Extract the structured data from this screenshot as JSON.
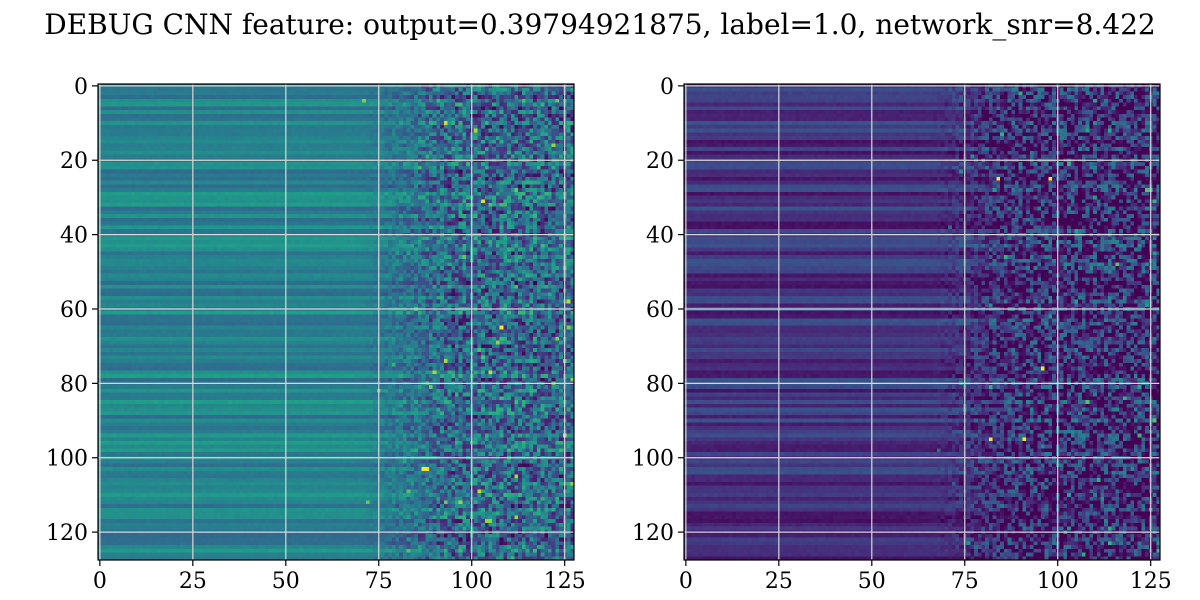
{
  "figure": {
    "title": "DEBUG CNN feature: output=0.39794921875, label=1.0, network_snr=8.422"
  },
  "chart_data": [
    {
      "type": "heatmap",
      "title": "",
      "xlabel": "",
      "ylabel": "",
      "colormap": "viridis",
      "n_cols": 128,
      "n_rows": 128,
      "xlim": [
        -0.5,
        127.5
      ],
      "ylim": [
        127.5,
        -0.5
      ],
      "x_ticks": [
        0,
        25,
        50,
        75,
        100,
        125
      ],
      "y_ticks": [
        0,
        20,
        40,
        60,
        80,
        100,
        120
      ],
      "grid": true,
      "pattern": "horizontal row bands (smooth) for columns 0-70, noisy speckled texture for columns ~70-127; overall green-teal tones",
      "base_level": 0.45,
      "noise_onset_col": 70,
      "hotspots": [
        {
          "row": 103,
          "col": 88
        },
        {
          "row": 103,
          "col": 87
        },
        {
          "row": 65,
          "col": 108
        }
      ]
    },
    {
      "type": "heatmap",
      "title": "",
      "xlabel": "",
      "ylabel": "",
      "colormap": "viridis",
      "n_cols": 128,
      "n_rows": 128,
      "xlim": [
        -0.5,
        127.5
      ],
      "ylim": [
        127.5,
        -0.5
      ],
      "x_ticks": [
        0,
        25,
        50,
        75,
        100,
        125
      ],
      "y_ticks": [
        0,
        20,
        40,
        60,
        80,
        100,
        120
      ],
      "grid": true,
      "pattern": "dark purple horizontal row bands for columns 0-65, noisy speckled texture for columns ~65-127 with bright yellow hotspots",
      "base_level": 0.15,
      "noise_onset_col": 65,
      "hotspots": [
        {
          "row": 95,
          "col": 82
        },
        {
          "row": 95,
          "col": 91
        },
        {
          "row": 76,
          "col": 96
        },
        {
          "row": 25,
          "col": 84
        },
        {
          "row": 25,
          "col": 98
        }
      ]
    }
  ]
}
